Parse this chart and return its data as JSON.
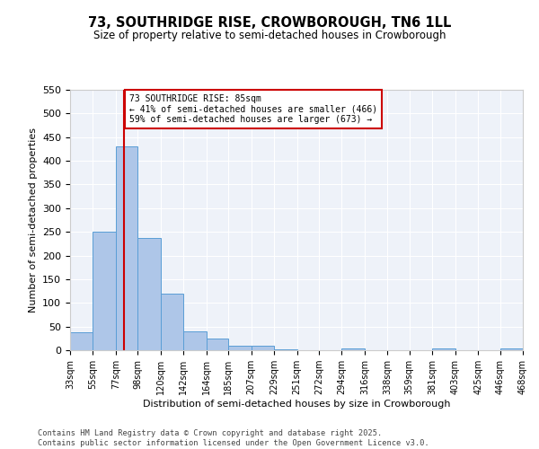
{
  "title": "73, SOUTHRIDGE RISE, CROWBOROUGH, TN6 1LL",
  "subtitle": "Size of property relative to semi-detached houses in Crowborough",
  "xlabel": "Distribution of semi-detached houses by size in Crowborough",
  "ylabel": "Number of semi-detached properties",
  "bins": [
    33,
    55,
    77,
    98,
    120,
    142,
    164,
    185,
    207,
    229,
    251,
    272,
    294,
    316,
    338,
    359,
    381,
    403,
    425,
    446,
    468
  ],
  "bin_labels": [
    "33sqm",
    "55sqm",
    "77sqm",
    "98sqm",
    "120sqm",
    "142sqm",
    "164sqm",
    "185sqm",
    "207sqm",
    "229sqm",
    "251sqm",
    "272sqm",
    "294sqm",
    "316sqm",
    "338sqm",
    "359sqm",
    "381sqm",
    "403sqm",
    "425sqm",
    "446sqm",
    "468sqm"
  ],
  "counts": [
    38,
    250,
    430,
    237,
    119,
    40,
    25,
    10,
    9,
    2,
    0,
    0,
    4,
    0,
    0,
    0,
    4,
    0,
    0,
    3
  ],
  "bar_color": "#aec6e8",
  "bar_edge_color": "#5a9ed6",
  "property_label": "73 SOUTHRIDGE RISE: 85sqm",
  "pct_smaller": 41,
  "count_smaller": 466,
  "pct_larger": 59,
  "count_larger": 673,
  "vline_color": "#cc0000",
  "vline_x": 85,
  "annotation_box_color": "#cc0000",
  "ylim": [
    0,
    550
  ],
  "yticks": [
    0,
    50,
    100,
    150,
    200,
    250,
    300,
    350,
    400,
    450,
    500,
    550
  ],
  "bg_color": "#eef2f9",
  "footer_line1": "Contains HM Land Registry data © Crown copyright and database right 2025.",
  "footer_line2": "Contains public sector information licensed under the Open Government Licence v3.0."
}
